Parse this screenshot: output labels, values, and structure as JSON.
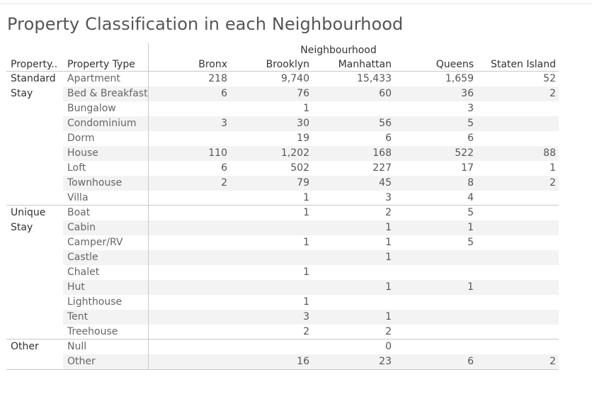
{
  "chart_data": {
    "type": "table",
    "title": "Property Classification in each Neighbourhood",
    "column_group_label": "Neighbourhood",
    "row_headers": [
      "Property..",
      "Property Type"
    ],
    "columns": [
      "Bronx",
      "Brooklyn",
      "Manhattan",
      "Queens",
      "Staten Island"
    ],
    "groups": [
      {
        "label_lines": [
          "Standard",
          "Stay"
        ],
        "rows": [
          {
            "type": "Apartment",
            "values": [
              "218",
              "9,740",
              "15,433",
              "1,659",
              "52"
            ]
          },
          {
            "type": "Bed & Breakfast",
            "values": [
              "6",
              "76",
              "60",
              "36",
              "2"
            ]
          },
          {
            "type": "Bungalow",
            "values": [
              "",
              "1",
              "",
              "3",
              ""
            ]
          },
          {
            "type": "Condominium",
            "values": [
              "3",
              "30",
              "56",
              "5",
              ""
            ]
          },
          {
            "type": "Dorm",
            "values": [
              "",
              "19",
              "6",
              "6",
              ""
            ]
          },
          {
            "type": "House",
            "values": [
              "110",
              "1,202",
              "168",
              "522",
              "88"
            ]
          },
          {
            "type": "Loft",
            "values": [
              "6",
              "502",
              "227",
              "17",
              "1"
            ]
          },
          {
            "type": "Townhouse",
            "values": [
              "2",
              "79",
              "45",
              "8",
              "2"
            ]
          },
          {
            "type": "Villa",
            "values": [
              "",
              "1",
              "3",
              "4",
              ""
            ]
          }
        ]
      },
      {
        "label_lines": [
          "Unique",
          "Stay"
        ],
        "rows": [
          {
            "type": "Boat",
            "values": [
              "",
              "1",
              "2",
              "5",
              ""
            ]
          },
          {
            "type": "Cabin",
            "values": [
              "",
              "",
              "1",
              "1",
              ""
            ]
          },
          {
            "type": "Camper/RV",
            "values": [
              "",
              "1",
              "1",
              "5",
              ""
            ]
          },
          {
            "type": "Castle",
            "values": [
              "",
              "",
              "1",
              "",
              ""
            ]
          },
          {
            "type": "Chalet",
            "values": [
              "",
              "1",
              "",
              "",
              ""
            ]
          },
          {
            "type": "Hut",
            "values": [
              "",
              "",
              "1",
              "1",
              ""
            ]
          },
          {
            "type": "Lighthouse",
            "values": [
              "",
              "1",
              "",
              "",
              ""
            ]
          },
          {
            "type": "Tent",
            "values": [
              "",
              "3",
              "1",
              "",
              ""
            ]
          },
          {
            "type": "Treehouse",
            "values": [
              "",
              "2",
              "2",
              "",
              ""
            ]
          }
        ]
      },
      {
        "label_lines": [
          "Other"
        ],
        "rows": [
          {
            "type": "Null",
            "values": [
              "",
              "",
              "0",
              "",
              ""
            ]
          },
          {
            "type": "Other",
            "values": [
              "",
              "16",
              "23",
              "6",
              "2"
            ]
          }
        ]
      }
    ]
  }
}
